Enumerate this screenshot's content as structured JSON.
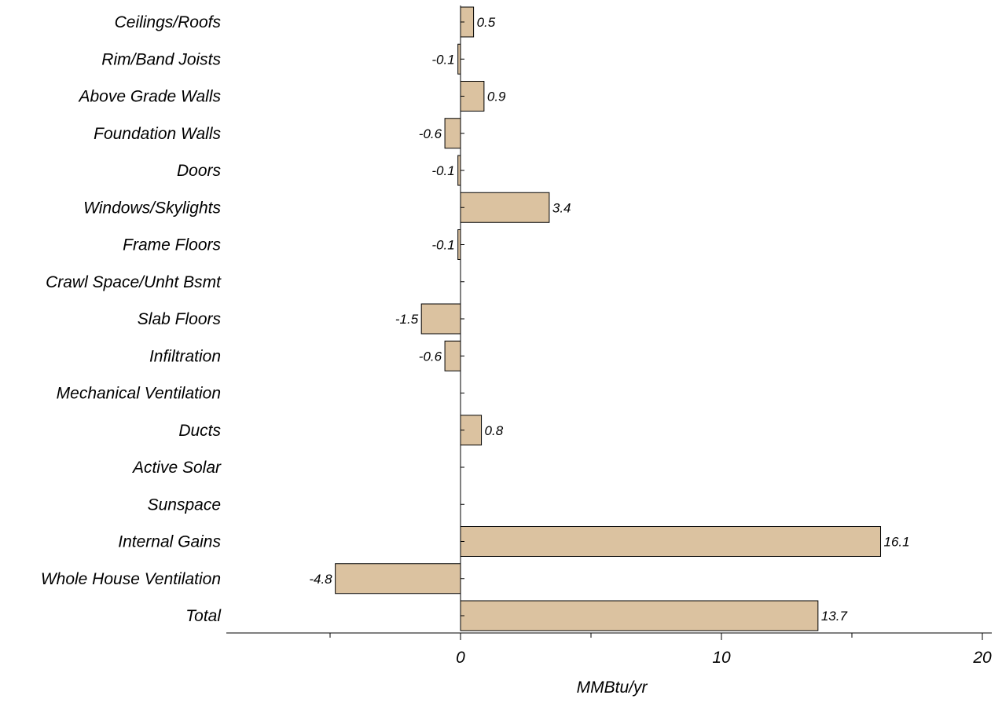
{
  "chart_data": {
    "type": "bar",
    "orientation": "horizontal",
    "categories": [
      "Ceilings/Roofs",
      "Rim/Band Joists",
      "Above Grade Walls",
      "Foundation Walls",
      "Doors",
      "Windows/Skylights",
      "Frame Floors",
      "Crawl Space/Unht Bsmt",
      "Slab Floors",
      "Infiltration",
      "Mechanical Ventilation",
      "Ducts",
      "Active Solar",
      "Sunspace",
      "Internal Gains",
      "Whole House Ventilation",
      "Total"
    ],
    "values": [
      0.5,
      -0.1,
      0.9,
      -0.6,
      -0.1,
      3.4,
      -0.1,
      null,
      -1.5,
      -0.6,
      null,
      0.8,
      null,
      null,
      16.1,
      -4.8,
      13.7
    ],
    "value_labels": [
      "0.5",
      "-0.1",
      "0.9",
      "-0.6",
      "-0.1",
      "3.4",
      "-0.1",
      "",
      "-1.5",
      "-0.6",
      "",
      "0.8",
      "",
      "",
      "16.1",
      "-4.8",
      "13.7"
    ],
    "xlabel": "MMBtu/yr",
    "xlim": [
      -9,
      20.5
    ],
    "xticks": [
      0,
      10,
      20
    ],
    "xtick_labels": [
      "0",
      "10",
      "20"
    ],
    "minor_ticks": [
      -5,
      5,
      15
    ],
    "bar_color": "#dbc2a0",
    "bar_edge_color": "#000000",
    "grid": false,
    "legend": "none"
  }
}
